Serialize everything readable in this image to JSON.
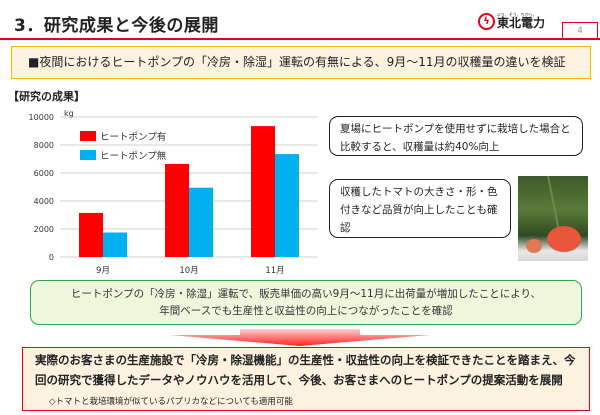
{
  "header": {
    "title": "3．研究成果と今後の展開",
    "logo_tagline": "より、そう、ちから。",
    "logo_name": "東北電力",
    "page_number": "4"
  },
  "topic": "■夜間におけるヒートポンプの「冷房・除湿」運転の有無による、9月～11月の収穫量の違いを検証",
  "section_label": "【研究の成果】",
  "chart_data": {
    "type": "bar",
    "ylabel": "kg",
    "categories": [
      "9月",
      "10月",
      "11月"
    ],
    "series": [
      {
        "name": "ヒートポンプ有",
        "values": [
          3150,
          6650,
          9350
        ],
        "color": "#ff0000"
      },
      {
        "name": "ヒートポンプ無",
        "values": [
          1750,
          4950,
          7350
        ],
        "color": "#00b0f0"
      }
    ],
    "ylim": [
      0,
      10000
    ],
    "yticks": [
      "0",
      "2000",
      "4000",
      "6000",
      "8000",
      "10000"
    ],
    "grid": true,
    "legend": "top-left"
  },
  "callouts": [
    "夏場にヒートポンプを使用せずに栽培した場合と比較すると、収穫量は約40%向上",
    "収穫したトマトの大きさ・形・色付きなど品質が向上したことも確認"
  ],
  "summary": [
    "ヒートポンプの「冷房・除湿」運転で、販売単価の高い9月～11月に出荷量が増加したことにより、",
    "年間ベースでも生産性と収益性の向上につながったことを確認"
  ],
  "conclusion": {
    "text": "実際のお客さまの生産施設で「冷房・除湿機能」の生産性・収益性の向上を検証できたことを踏まえ、今回の研究で獲得したデータやノウハウを活用して、今後、お客さまへのヒートポンプの提案活動を展開",
    "note": "◇トマトと栽培環境が似ているパプリカなどについても適用可能"
  }
}
